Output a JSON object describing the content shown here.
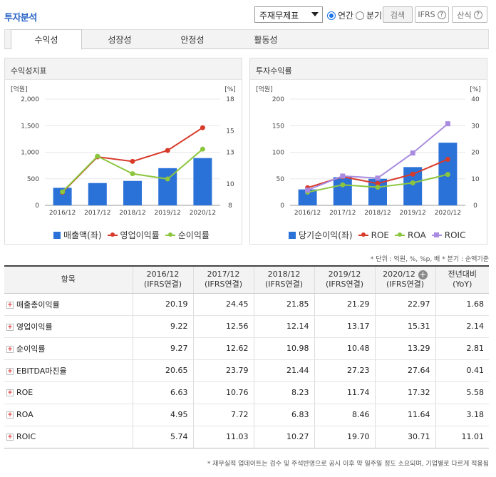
{
  "header": {
    "title": "투자분석",
    "select_value": "주재무제표",
    "radio_annual": "연간",
    "radio_quarter": "분기",
    "search_label": "검색",
    "ifrs_label": "IFRS",
    "formula_label": "산식",
    "help_glyph": "?"
  },
  "tabs": [
    "수익성",
    "성장성",
    "안정성",
    "활동성"
  ],
  "left_panel": {
    "title": "수익성지표",
    "left_unit": "[억원]",
    "right_unit": "[%]",
    "legend": [
      "매출액(좌)",
      "영업이익률",
      "순이익률"
    ]
  },
  "right_panel": {
    "title": "투자수익률",
    "left_unit": "[억원]",
    "right_unit": "[%]",
    "legend": [
      "당기순이익(좌)",
      "ROE",
      "ROA",
      "ROIC"
    ]
  },
  "colors": {
    "bar": "#2b72d8",
    "red": "#d83a2a",
    "green": "#8cc63f",
    "purple": "#a98be0",
    "blue_text": "#2b64c8"
  },
  "chart_data": [
    {
      "type": "bar",
      "title": "수익성지표",
      "categories": [
        "2016/12",
        "2017/12",
        "2018/12",
        "2019/12",
        "2020/12"
      ],
      "ylim": [
        0,
        2000
      ],
      "yticks": [
        0,
        500,
        1000,
        1500,
        2000
      ],
      "y2lim": [
        8,
        18
      ],
      "y2ticks": [
        8,
        10,
        13,
        15,
        18
      ],
      "series": [
        {
          "name": "매출액(좌)",
          "type": "bar",
          "axis": "left",
          "values": [
            330,
            420,
            460,
            700,
            890
          ]
        },
        {
          "name": "영업이익률",
          "type": "line",
          "axis": "right",
          "values": [
            9.22,
            12.56,
            12.14,
            13.17,
            15.31
          ]
        },
        {
          "name": "순이익률",
          "type": "line",
          "axis": "right",
          "values": [
            9.27,
            12.62,
            10.98,
            10.48,
            13.29
          ]
        }
      ]
    },
    {
      "type": "bar",
      "title": "투자수익률",
      "categories": [
        "2016/12",
        "2017/12",
        "2018/12",
        "2019/12",
        "2020/12"
      ],
      "ylim": [
        0,
        200
      ],
      "yticks": [
        0,
        50,
        100,
        150,
        200
      ],
      "y2lim": [
        0,
        40
      ],
      "y2ticks": [
        0,
        10,
        20,
        30,
        40
      ],
      "series": [
        {
          "name": "당기순이익(좌)",
          "type": "bar",
          "axis": "left",
          "values": [
            30,
            53,
            50,
            72,
            118
          ]
        },
        {
          "name": "ROE",
          "type": "line",
          "axis": "right",
          "values": [
            6.63,
            10.76,
            8.23,
            11.74,
            17.32
          ]
        },
        {
          "name": "ROA",
          "type": "line",
          "axis": "right",
          "values": [
            4.95,
            7.72,
            6.83,
            8.46,
            11.64
          ]
        },
        {
          "name": "ROIC",
          "type": "line",
          "axis": "right",
          "values": [
            5.74,
            11.03,
            10.27,
            19.7,
            30.71
          ]
        }
      ]
    }
  ],
  "note": "* 단위 : 억원, %, %p, 배  * 분기 : 순액기준",
  "table": {
    "header_item": "항목",
    "columns": [
      {
        "period": "2016/12",
        "basis": "(IFRS연결)"
      },
      {
        "period": "2017/12",
        "basis": "(IFRS연결)"
      },
      {
        "period": "2018/12",
        "basis": "(IFRS연결)"
      },
      {
        "period": "2019/12",
        "basis": "(IFRS연결)"
      },
      {
        "period": "2020/12",
        "basis": "(IFRS연결)"
      }
    ],
    "yoy_label": "전년대비",
    "yoy_sub": "(YoY)",
    "add_glyph": "+",
    "expand_glyph": "+",
    "rows": [
      {
        "name": "매출총이익률",
        "values": [
          "20.19",
          "24.45",
          "21.85",
          "21.29",
          "22.97",
          "1.68"
        ]
      },
      {
        "name": "영업이익률",
        "values": [
          "9.22",
          "12.56",
          "12.14",
          "13.17",
          "15.31",
          "2.14"
        ]
      },
      {
        "name": "순이익률",
        "values": [
          "9.27",
          "12.62",
          "10.98",
          "10.48",
          "13.29",
          "2.81"
        ]
      },
      {
        "name": "EBITDA마진율",
        "values": [
          "20.65",
          "23.79",
          "21.44",
          "27.23",
          "27.64",
          "0.41"
        ]
      },
      {
        "name": "ROE",
        "values": [
          "6.63",
          "10.76",
          "8.23",
          "11.74",
          "17.32",
          "5.58"
        ]
      },
      {
        "name": "ROA",
        "values": [
          "4.95",
          "7.72",
          "6.83",
          "8.46",
          "11.64",
          "3.18"
        ]
      },
      {
        "name": "ROIC",
        "values": [
          "5.74",
          "11.03",
          "10.27",
          "19.70",
          "30.71",
          "11.01"
        ]
      }
    ]
  },
  "footer": "* 재무실적 업데이트는 검수 및 주석반영으로 공시 이후 약 일주일 정도 소요되며, 기업별로 다르게 적용됨"
}
